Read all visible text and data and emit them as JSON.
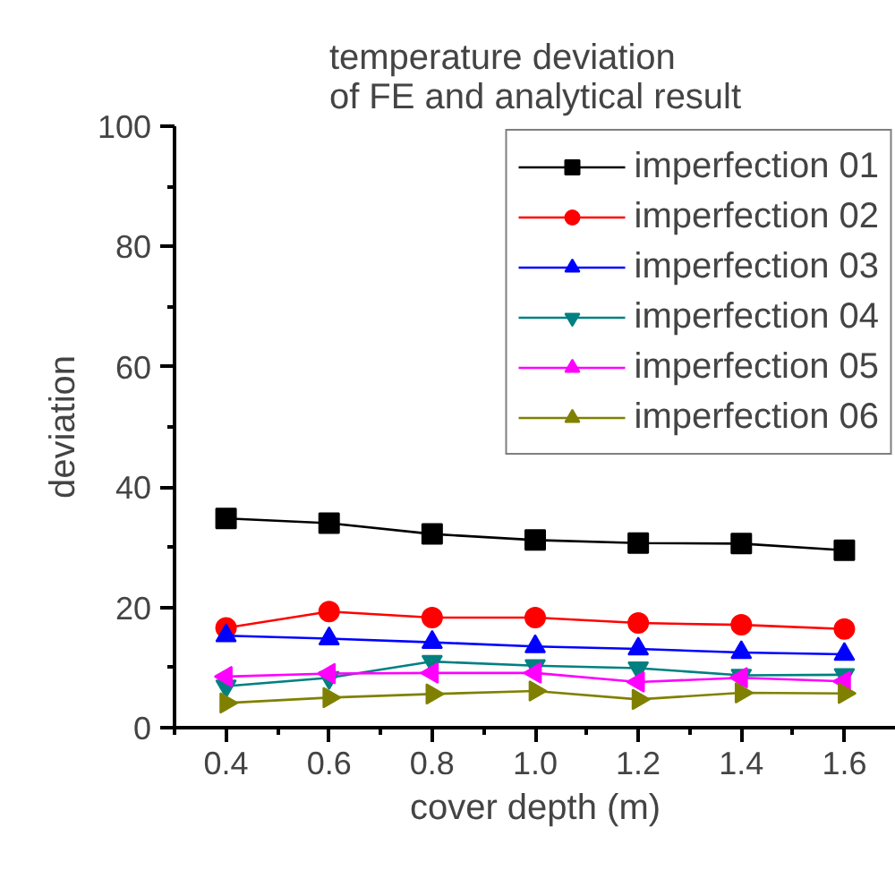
{
  "chart_data": {
    "type": "line",
    "title": "temperature deviation\nof FE and analytical result",
    "xlabel": "cover depth (m)",
    "ylabel": "deviation",
    "x": [
      0.4,
      0.6,
      0.8,
      1.0,
      1.2,
      1.4,
      1.6
    ],
    "xlim": [
      0.3,
      1.7
    ],
    "xticks": [
      {
        "value": 0.4,
        "label": "0.4"
      },
      {
        "value": 0.6,
        "label": "0.6"
      },
      {
        "value": 0.8,
        "label": "0.8"
      },
      {
        "value": 1.0,
        "label": "1.0"
      },
      {
        "value": 1.2,
        "label": "1.2"
      },
      {
        "value": 1.4,
        "label": "1.4"
      },
      {
        "value": 1.6,
        "label": "1.6"
      }
    ],
    "ylim": [
      0,
      100
    ],
    "yticks": [
      0,
      20,
      40,
      60,
      80,
      100
    ],
    "legend": "top right",
    "grid": false,
    "line_style": "solid",
    "series": [
      {
        "name": "imperfection 01",
        "color": "#000000",
        "marker": "square",
        "values": [
          34.8,
          34.0,
          32.2,
          31.2,
          30.7,
          30.6,
          29.5
        ]
      },
      {
        "name": "imperfection 02",
        "color": "#ff0000",
        "marker": "circle",
        "values": [
          16.6,
          19.3,
          18.3,
          18.3,
          17.4,
          17.1,
          16.4
        ]
      },
      {
        "name": "imperfection 03",
        "color": "#0000ff",
        "marker": "triangle",
        "values": [
          15.3,
          14.8,
          14.2,
          13.5,
          13.1,
          12.5,
          12.2
        ]
      },
      {
        "name": "imperfection 04",
        "color": "#008080",
        "marker": "triangle_down",
        "values": [
          6.9,
          8.3,
          11.0,
          10.3,
          9.9,
          8.7,
          8.8
        ]
      },
      {
        "name": "imperfection 05",
        "color": "#ff00ff",
        "marker": "triangle_left",
        "values": [
          8.5,
          9.0,
          9.1,
          9.1,
          7.6,
          8.3,
          7.7
        ]
      },
      {
        "name": "imperfection 06",
        "color": "#808000",
        "marker": "triangle_right",
        "values": [
          4.1,
          5.0,
          5.6,
          6.1,
          4.7,
          5.8,
          5.7
        ]
      }
    ]
  }
}
